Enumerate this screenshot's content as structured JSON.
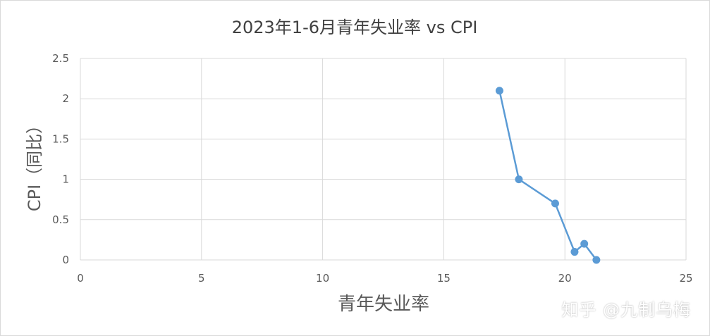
{
  "chart_data": {
    "type": "scatter",
    "title": "2023年1-6月青年失业率 vs CPI",
    "xlabel": "青年失业率",
    "ylabel": "CPI（同比）",
    "xlim": [
      0,
      25
    ],
    "ylim": [
      0,
      2.5
    ],
    "x_ticks": [
      "0",
      "5",
      "10",
      "15",
      "20",
      "25"
    ],
    "y_ticks": [
      "0",
      "0.5",
      "1",
      "1.5",
      "2",
      "2.5"
    ],
    "grid": true,
    "legend": "none",
    "series": [
      {
        "color": "#5b9bd5",
        "points": [
          {
            "x": 17.3,
            "y": 2.1
          },
          {
            "x": 18.1,
            "y": 1.0
          },
          {
            "x": 19.6,
            "y": 0.7
          },
          {
            "x": 20.4,
            "y": 0.1
          },
          {
            "x": 20.8,
            "y": 0.2
          },
          {
            "x": 21.3,
            "y": 0.0
          }
        ]
      }
    ]
  },
  "watermark": "知乎 @九制乌梅",
  "colors": {
    "grid": "#d9d9d9",
    "axis_text": "#595959",
    "title_text": "#404040",
    "line": "#5b9bd5"
  }
}
